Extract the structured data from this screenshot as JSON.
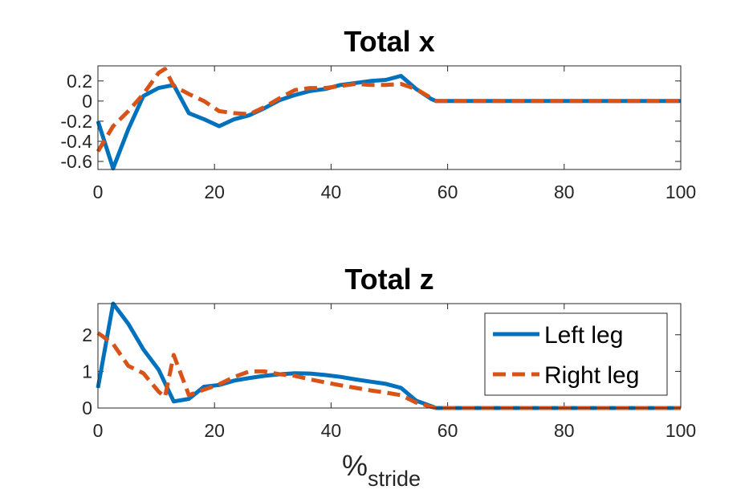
{
  "chart_data": [
    {
      "type": "line",
      "title": "Total x",
      "xlabel": "",
      "ylabel": "",
      "xlim": [
        0,
        100
      ],
      "ylim": [
        -0.68,
        0.35
      ],
      "xticks": [
        0,
        20,
        40,
        60,
        80,
        100
      ],
      "xtick_labels": [
        "0",
        "20",
        "40",
        "60",
        "80",
        "100"
      ],
      "yticks": [
        0.2,
        0,
        -0.2,
        -0.4,
        -0.6
      ],
      "ytick_labels": [
        "0.2",
        "0",
        "-0.2",
        "-0.4",
        "-0.6"
      ],
      "grid": false,
      "series": [
        {
          "name": "Left leg",
          "color": "#0072BD",
          "style": "solid",
          "x": [
            0,
            2.6,
            5.2,
            7.8,
            10.4,
            13,
            15.6,
            18.2,
            20.8,
            23.4,
            26,
            28.6,
            31.2,
            33.8,
            36.4,
            39,
            41.6,
            44.2,
            46.8,
            49.4,
            52,
            54.6,
            57.2,
            58,
            60,
            70,
            80,
            90,
            100
          ],
          "values": [
            -0.2,
            -0.67,
            -0.28,
            0.05,
            0.13,
            0.16,
            -0.12,
            -0.18,
            -0.25,
            -0.18,
            -0.14,
            -0.07,
            0.01,
            0.06,
            0.1,
            0.12,
            0.16,
            0.18,
            0.2,
            0.21,
            0.25,
            0.12,
            0.02,
            0.0,
            0.0,
            0.0,
            0.0,
            0.0,
            0.0
          ]
        },
        {
          "name": "Right leg",
          "color": "#D95319",
          "style": "dashed",
          "x": [
            0,
            2.6,
            5.2,
            7.8,
            10.4,
            11.5,
            13,
            15.6,
            18.2,
            20.8,
            23.4,
            26,
            28.6,
            31.2,
            33.8,
            36.4,
            39,
            41.6,
            44.2,
            46.8,
            49.4,
            52,
            54.6,
            57.2,
            58,
            60,
            70,
            80,
            90,
            100
          ],
          "values": [
            -0.5,
            -0.25,
            -0.1,
            0.07,
            0.28,
            0.32,
            0.15,
            0.07,
            0.0,
            -0.1,
            -0.12,
            -0.13,
            -0.06,
            0.03,
            0.11,
            0.13,
            0.13,
            0.15,
            0.17,
            0.16,
            0.16,
            0.17,
            0.12,
            0.03,
            0.0,
            0.0,
            0.0,
            0.0,
            0.0,
            0.0
          ]
        }
      ]
    },
    {
      "type": "line",
      "title": "Total z",
      "xlabel": "%",
      "xlabel_subscript": "stride",
      "ylabel": "",
      "xlim": [
        0,
        100
      ],
      "ylim": [
        0,
        2.85
      ],
      "xticks": [
        0,
        20,
        40,
        60,
        80,
        100
      ],
      "xtick_labels": [
        "0",
        "20",
        "40",
        "60",
        "80",
        "100"
      ],
      "yticks": [
        2,
        1,
        0
      ],
      "ytick_labels": [
        "2",
        "1",
        "0"
      ],
      "grid": false,
      "legend": {
        "position": "top-right",
        "entries": [
          "Left leg",
          "Right leg"
        ]
      },
      "series": [
        {
          "name": "Left leg",
          "color": "#0072BD",
          "style": "solid",
          "x": [
            0,
            2.6,
            5.2,
            7.8,
            10.4,
            13,
            15.6,
            18.2,
            20.8,
            23.4,
            26,
            28.6,
            31.2,
            33.8,
            36.4,
            39,
            41.6,
            44.2,
            46.8,
            49.4,
            52,
            54.6,
            57.2,
            58,
            60,
            70,
            80,
            90,
            100
          ],
          "values": [
            0.55,
            2.85,
            2.3,
            1.6,
            1.05,
            0.18,
            0.25,
            0.58,
            0.63,
            0.75,
            0.82,
            0.88,
            0.92,
            0.95,
            0.94,
            0.9,
            0.85,
            0.78,
            0.72,
            0.66,
            0.55,
            0.2,
            0.05,
            0.0,
            0.0,
            0.0,
            0.0,
            0.0,
            0.0
          ]
        },
        {
          "name": "Right leg",
          "color": "#D95319",
          "style": "dashed",
          "x": [
            0,
            2.6,
            5.2,
            7.8,
            10.4,
            11.5,
            13,
            15.6,
            18.2,
            20.8,
            23.4,
            26,
            28.6,
            31.2,
            33.8,
            36.4,
            39,
            41.6,
            44.2,
            46.8,
            49.4,
            52,
            54.6,
            57.2,
            58,
            60,
            70,
            80,
            90,
            100
          ],
          "values": [
            2.05,
            1.75,
            1.15,
            0.95,
            0.45,
            0.3,
            1.45,
            0.35,
            0.5,
            0.65,
            0.85,
            1.0,
            1.0,
            0.92,
            0.88,
            0.78,
            0.7,
            0.62,
            0.55,
            0.48,
            0.42,
            0.35,
            0.15,
            0.03,
            0.0,
            0.0,
            0.0,
            0.0,
            0.0,
            0.0
          ]
        }
      ]
    }
  ]
}
